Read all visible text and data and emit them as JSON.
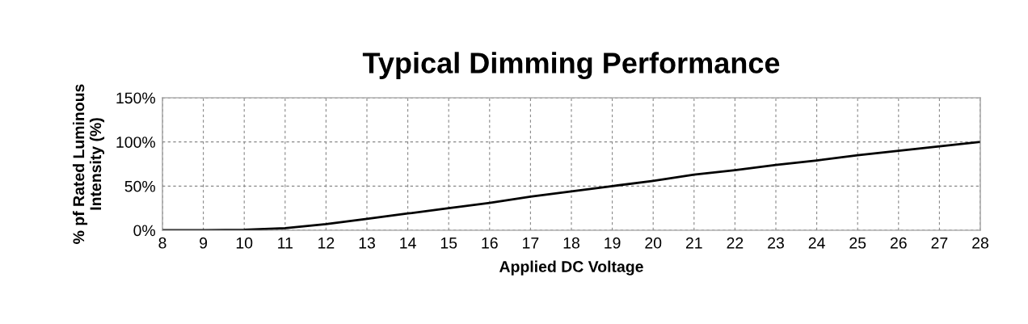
{
  "chart_data": {
    "type": "line",
    "title": "Typical Dimming Performance",
    "xlabel": "Applied DC Voltage",
    "ylabel": "% pf Rated Luminous\nIntensity (%)",
    "x": [
      8,
      9,
      10,
      11,
      12,
      13,
      14,
      15,
      16,
      17,
      18,
      19,
      20,
      21,
      22,
      23,
      24,
      25,
      26,
      27,
      28
    ],
    "series": [
      {
        "color": "#000000",
        "values": [
          0,
          0,
          0.5,
          2.5,
          7,
          13,
          19,
          25,
          31,
          38,
          44,
          50,
          56,
          63,
          68,
          74,
          79,
          85,
          90,
          95,
          100
        ]
      }
    ],
    "xlim": [
      8,
      28
    ],
    "xticks": [
      8,
      9,
      10,
      11,
      12,
      13,
      14,
      15,
      16,
      17,
      18,
      19,
      20,
      21,
      22,
      23,
      24,
      25,
      26,
      27,
      28
    ],
    "ylim": [
      0,
      150
    ],
    "yticks": [
      {
        "value": 0,
        "label": "0%"
      },
      {
        "value": 50,
        "label": "50%"
      },
      {
        "value": 100,
        "label": "100%"
      },
      {
        "value": 150,
        "label": "150%"
      }
    ],
    "grid": true,
    "legend": false,
    "marker": "none",
    "line_style": "solid"
  }
}
